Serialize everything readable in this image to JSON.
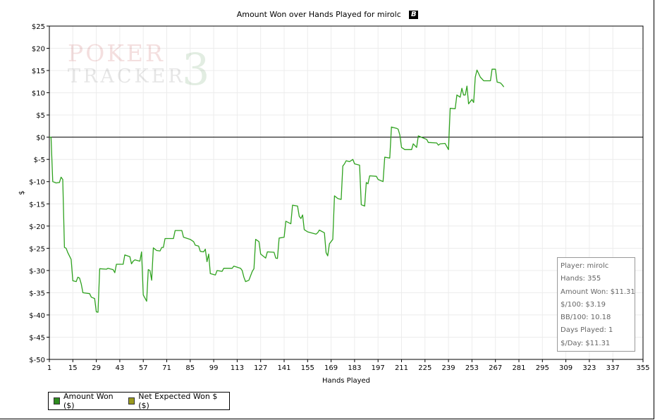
{
  "chart_data": {
    "type": "line",
    "title": "Amount Won over Hands Played for mirolc",
    "xlabel": "Hands Played",
    "ylabel": "$",
    "xlim": [
      1,
      355
    ],
    "ylim": [
      -50,
      25
    ],
    "x_ticks": [
      1,
      15,
      29,
      43,
      57,
      71,
      85,
      99,
      113,
      127,
      141,
      155,
      169,
      183,
      197,
      211,
      225,
      239,
      253,
      267,
      281,
      295,
      309,
      323,
      337,
      355
    ],
    "y_ticks": [
      25,
      20,
      15,
      10,
      5,
      0,
      -5,
      -10,
      -15,
      -20,
      -25,
      -30,
      -35,
      -40,
      -45,
      -50
    ],
    "y_tick_labels": [
      "$25",
      "$20",
      "$15",
      "$10",
      "$5",
      "$0",
      "$-5",
      "$-10",
      "$-15",
      "$-20",
      "$-25",
      "$-30",
      "$-35",
      "$-40",
      "$-45",
      "$-50"
    ],
    "grid": true,
    "legend": [
      "Amount Won ($)",
      "Net Expected Won $ ($)"
    ],
    "legend_colors": [
      "#2e8b1f",
      "#9a9a1e"
    ],
    "series": [
      {
        "name": "Amount Won ($)",
        "color": "#2fa21f",
        "points": [
          [
            1,
            0
          ],
          [
            2,
            0
          ],
          [
            3,
            -10
          ],
          [
            5,
            -10.3
          ],
          [
            7,
            -10.2
          ],
          [
            8,
            -9
          ],
          [
            9,
            -9.5
          ],
          [
            10,
            -24.8
          ],
          [
            11,
            -25
          ],
          [
            12,
            -26
          ],
          [
            14,
            -27.5
          ],
          [
            15,
            -32.3
          ],
          [
            17,
            -32.5
          ],
          [
            18,
            -31.5
          ],
          [
            19,
            -31.7
          ],
          [
            20,
            -33
          ],
          [
            21,
            -35
          ],
          [
            25,
            -35.2
          ],
          [
            26,
            -36
          ],
          [
            28,
            -36.3
          ],
          [
            29,
            -39.3
          ],
          [
            30,
            -39.4
          ],
          [
            31,
            -29.6
          ],
          [
            35,
            -29.7
          ],
          [
            36,
            -29.5
          ],
          [
            39,
            -29.8
          ],
          [
            40,
            -30.5
          ],
          [
            41,
            -28.6
          ],
          [
            45,
            -28.6
          ],
          [
            46,
            -26.5
          ],
          [
            49,
            -26.9
          ],
          [
            50,
            -28.5
          ],
          [
            51,
            -27.9
          ],
          [
            52,
            -27.6
          ],
          [
            55,
            -27.9
          ],
          [
            56,
            -25.8
          ],
          [
            57,
            -35.5
          ],
          [
            59,
            -36.9
          ],
          [
            60,
            -29.8
          ],
          [
            61,
            -30
          ],
          [
            62,
            -32.2
          ],
          [
            63,
            -24.9
          ],
          [
            65,
            -25.5
          ],
          [
            67,
            -25.6
          ],
          [
            68,
            -24.8
          ],
          [
            69,
            -24.8
          ],
          [
            70,
            -22.8
          ],
          [
            75,
            -22.8
          ],
          [
            76,
            -21
          ],
          [
            80,
            -21
          ],
          [
            81,
            -22.5
          ],
          [
            85,
            -23
          ],
          [
            87,
            -23.5
          ],
          [
            88,
            -24.3
          ],
          [
            90,
            -24.5
          ],
          [
            91,
            -25.7
          ],
          [
            93,
            -25.8
          ],
          [
            94,
            -25.2
          ],
          [
            95,
            -28
          ],
          [
            96,
            -26.3
          ],
          [
            97,
            -30.7
          ],
          [
            100,
            -31
          ],
          [
            101,
            -30
          ],
          [
            104,
            -30.2
          ],
          [
            105,
            -29.5
          ],
          [
            110,
            -29.5
          ],
          [
            111,
            -29
          ],
          [
            115,
            -29.5
          ],
          [
            116,
            -30
          ],
          [
            117,
            -31.5
          ],
          [
            118,
            -32.5
          ],
          [
            120,
            -32.2
          ],
          [
            122,
            -30.2
          ],
          [
            123,
            -29.6
          ],
          [
            124,
            -23
          ],
          [
            126,
            -23.5
          ],
          [
            127,
            -26.3
          ],
          [
            130,
            -27.2
          ],
          [
            131,
            -25.8
          ],
          [
            135,
            -25.9
          ],
          [
            136,
            -27.2
          ],
          [
            137,
            -27.3
          ],
          [
            138,
            -22.7
          ],
          [
            141,
            -22.5
          ],
          [
            142,
            -18.9
          ],
          [
            145,
            -19.5
          ],
          [
            146,
            -15.3
          ],
          [
            149,
            -15.5
          ],
          [
            150,
            -17.8
          ],
          [
            151,
            -18.3
          ],
          [
            152,
            -17.5
          ],
          [
            153,
            -20.8
          ],
          [
            155,
            -21.3
          ],
          [
            160,
            -21.8
          ],
          [
            161,
            -21.5
          ],
          [
            162,
            -20.9
          ],
          [
            165,
            -21.5
          ],
          [
            166,
            -26
          ],
          [
            167,
            -26.7
          ],
          [
            168,
            -24
          ],
          [
            170,
            -23
          ],
          [
            171,
            -13.2
          ],
          [
            173,
            -13.8
          ],
          [
            175,
            -14
          ],
          [
            176,
            -6.5
          ],
          [
            177,
            -6
          ],
          [
            178,
            -5.3
          ],
          [
            180,
            -5.5
          ],
          [
            182,
            -5
          ],
          [
            183,
            -6
          ],
          [
            186,
            -6.3
          ],
          [
            187,
            -15.2
          ],
          [
            189,
            -15.5
          ],
          [
            190,
            -10.2
          ],
          [
            191,
            -10.5
          ],
          [
            192,
            -8.7
          ],
          [
            196,
            -8.8
          ],
          [
            197,
            -9.5
          ],
          [
            200,
            -10
          ],
          [
            201,
            -4.5
          ],
          [
            204,
            -4.7
          ],
          [
            205,
            2.3
          ],
          [
            208,
            2
          ],
          [
            209,
            1.8
          ],
          [
            210,
            0.5
          ],
          [
            211,
            -2.3
          ],
          [
            213,
            -2.8
          ],
          [
            217,
            -2.8
          ],
          [
            218,
            -1.5
          ],
          [
            220,
            -2.3
          ],
          [
            221,
            0.3
          ],
          [
            224,
            -0.2
          ],
          [
            226,
            -0.5
          ],
          [
            227,
            -1.2
          ],
          [
            232,
            -1.3
          ],
          [
            233,
            -1.8
          ],
          [
            234,
            -1.5
          ],
          [
            237,
            -1.4
          ],
          [
            238,
            -2.1
          ],
          [
            239,
            -2.8
          ],
          [
            240,
            6.5
          ],
          [
            243,
            6.4
          ],
          [
            244,
            9.5
          ],
          [
            246,
            9
          ],
          [
            247,
            11
          ],
          [
            248,
            9.5
          ],
          [
            249,
            9.5
          ],
          [
            250,
            11.5
          ],
          [
            251,
            7.5
          ],
          [
            252,
            8
          ],
          [
            253,
            8.5
          ],
          [
            254,
            7.8
          ],
          [
            255,
            13.5
          ],
          [
            256,
            15.1
          ],
          [
            258,
            13.5
          ],
          [
            260,
            12.7
          ],
          [
            264,
            12.7
          ],
          [
            265,
            15.3
          ],
          [
            267,
            15.3
          ],
          [
            268,
            12.4
          ],
          [
            270,
            12.2
          ],
          [
            271,
            11.8
          ],
          [
            272,
            11.3
          ]
        ]
      }
    ]
  },
  "info_box": {
    "player": "Player: mirolc",
    "hands": "Hands: 355",
    "amount_won": "Amount Won: $11.31",
    "per100": "$/100: $3.19",
    "bb100": "BB/100: 10.18",
    "days": "Days Played: 1",
    "per_day": "$/Day: $11.31"
  },
  "watermark": {
    "line1": "POKER",
    "line2": "TRACKER",
    "line3": "3"
  }
}
